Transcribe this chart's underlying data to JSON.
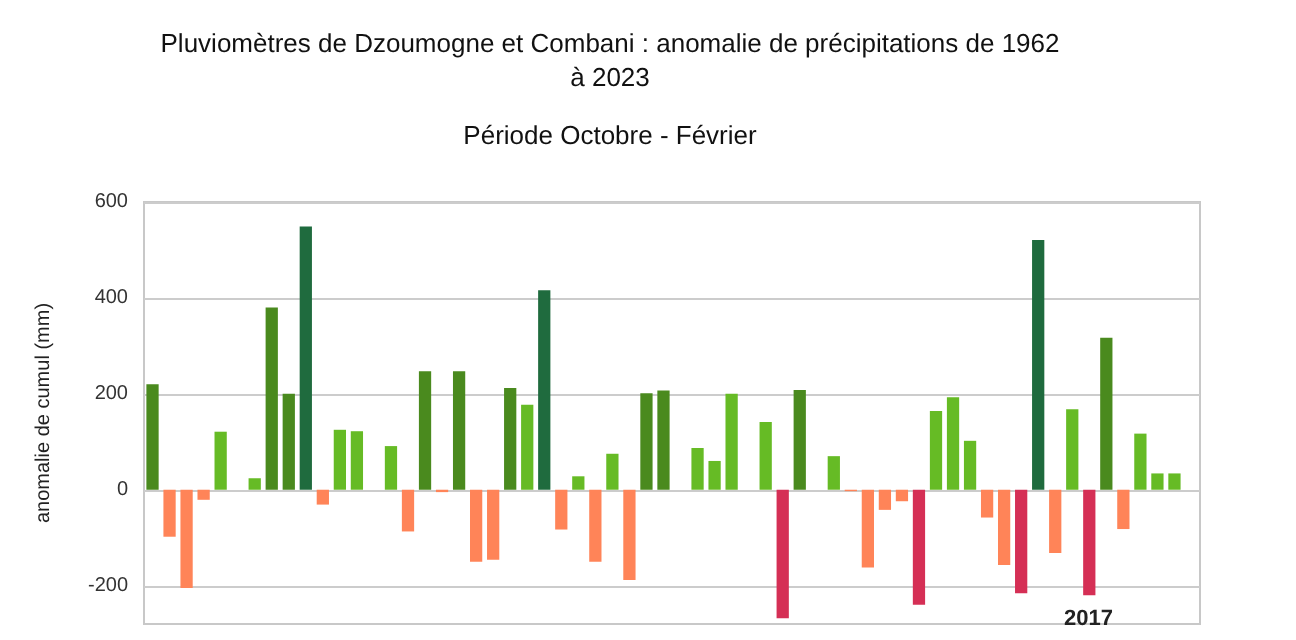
{
  "chart_data": {
    "type": "bar",
    "title": "Pluviomètres de Dzoumogne et Combani : anomalie de précipitations de 1962\nà 2023",
    "subtitle": "Période Octobre - Février",
    "ylabel": "anomalie de cumul (mm)",
    "categories": [
      null,
      null,
      null,
      null,
      null,
      null,
      null,
      null,
      null,
      null,
      null,
      null,
      null,
      null,
      null,
      null,
      null,
      null,
      null,
      null,
      null,
      null,
      null,
      null,
      null,
      null,
      null,
      null,
      null,
      null,
      null,
      null,
      null,
      null,
      null,
      null,
      null,
      null,
      null,
      null,
      null,
      null,
      null,
      null,
      null,
      null,
      null,
      null,
      null,
      null,
      null,
      null,
      null,
      null,
      null,
      null,
      null,
      null,
      null,
      null,
      null,
      null
    ],
    "values": [
      220,
      -98,
      -205,
      -21,
      121,
      null,
      24,
      380,
      200,
      549,
      -31,
      125,
      122,
      null,
      91,
      -87,
      247,
      -5,
      247,
      -150,
      -146,
      212,
      177,
      416,
      -83,
      28,
      -150,
      75,
      -188,
      201,
      207,
      null,
      87,
      60,
      200,
      null,
      141,
      -268,
      208,
      null,
      70,
      -3,
      -162,
      -42,
      -24,
      -240,
      164,
      193,
      102,
      -58,
      -157,
      -216,
      521,
      -132,
      168,
      -220,
      317,
      -82,
      117,
      34,
      34,
      null
    ],
    "colors": [
      "#4a8a1e",
      "#ff8458",
      "#ff8458",
      "#ff8458",
      "#66bb25",
      "#d52f55",
      "#66bb25",
      "#4a8a1e",
      "#4a8a1e",
      "#1f6b3e",
      "#ff8458",
      "#66bb25",
      "#66bb25",
      "#d52f55",
      "#66bb25",
      "#ff8458",
      "#4a8a1e",
      "#ff8458",
      "#4a8a1e",
      "#ff8458",
      "#ff8458",
      "#4a8a1e",
      "#66bb25",
      "#1f6b3e",
      "#ff8458",
      "#66bb25",
      "#ff8458",
      "#66bb25",
      "#ff8458",
      "#4a8a1e",
      "#4a8a1e",
      "#d52f55",
      "#66bb25",
      "#66bb25",
      "#66bb25",
      "#7a0028",
      "#66bb25",
      "#d52f55",
      "#4a8a1e",
      "#d52f55",
      "#66bb25",
      "#ff8458",
      "#ff8458",
      "#ff8458",
      "#ff8458",
      "#d52f55",
      "#66bb25",
      "#66bb25",
      "#66bb25",
      "#ff8458",
      "#ff8458",
      "#d52f55",
      "#1f6b3e",
      "#ff8458",
      "#66bb25",
      "#d52f55",
      "#4a8a1e",
      "#ff8458",
      "#66bb25",
      "#66bb25",
      "#66bb25",
      "#7a0028"
    ],
    "ylim": [
      -280,
      600
    ],
    "yticks": [
      -200,
      0,
      200,
      400,
      600
    ],
    "grid": "y",
    "annotations": [
      "2017"
    ]
  }
}
